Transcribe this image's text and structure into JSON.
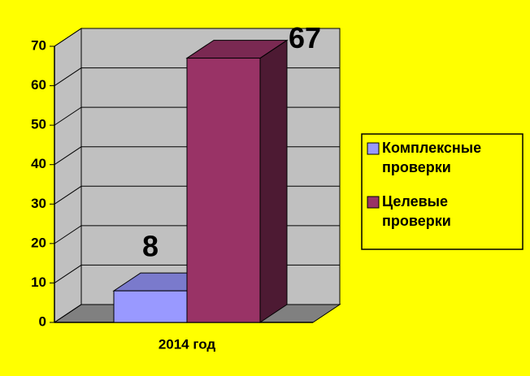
{
  "chart_data": {
    "type": "bar3d",
    "categories": [
      "2014 год"
    ],
    "series": [
      {
        "name": "Комплексные проверки",
        "color": "#9999ff",
        "values": [
          8
        ]
      },
      {
        "name": "Целевые проверки",
        "color": "#993366",
        "values": [
          67
        ]
      }
    ],
    "ylim": [
      0,
      70
    ],
    "yticks": [
      0,
      10,
      20,
      30,
      40,
      50,
      60,
      70
    ],
    "grid": true,
    "legend": "right"
  }
}
